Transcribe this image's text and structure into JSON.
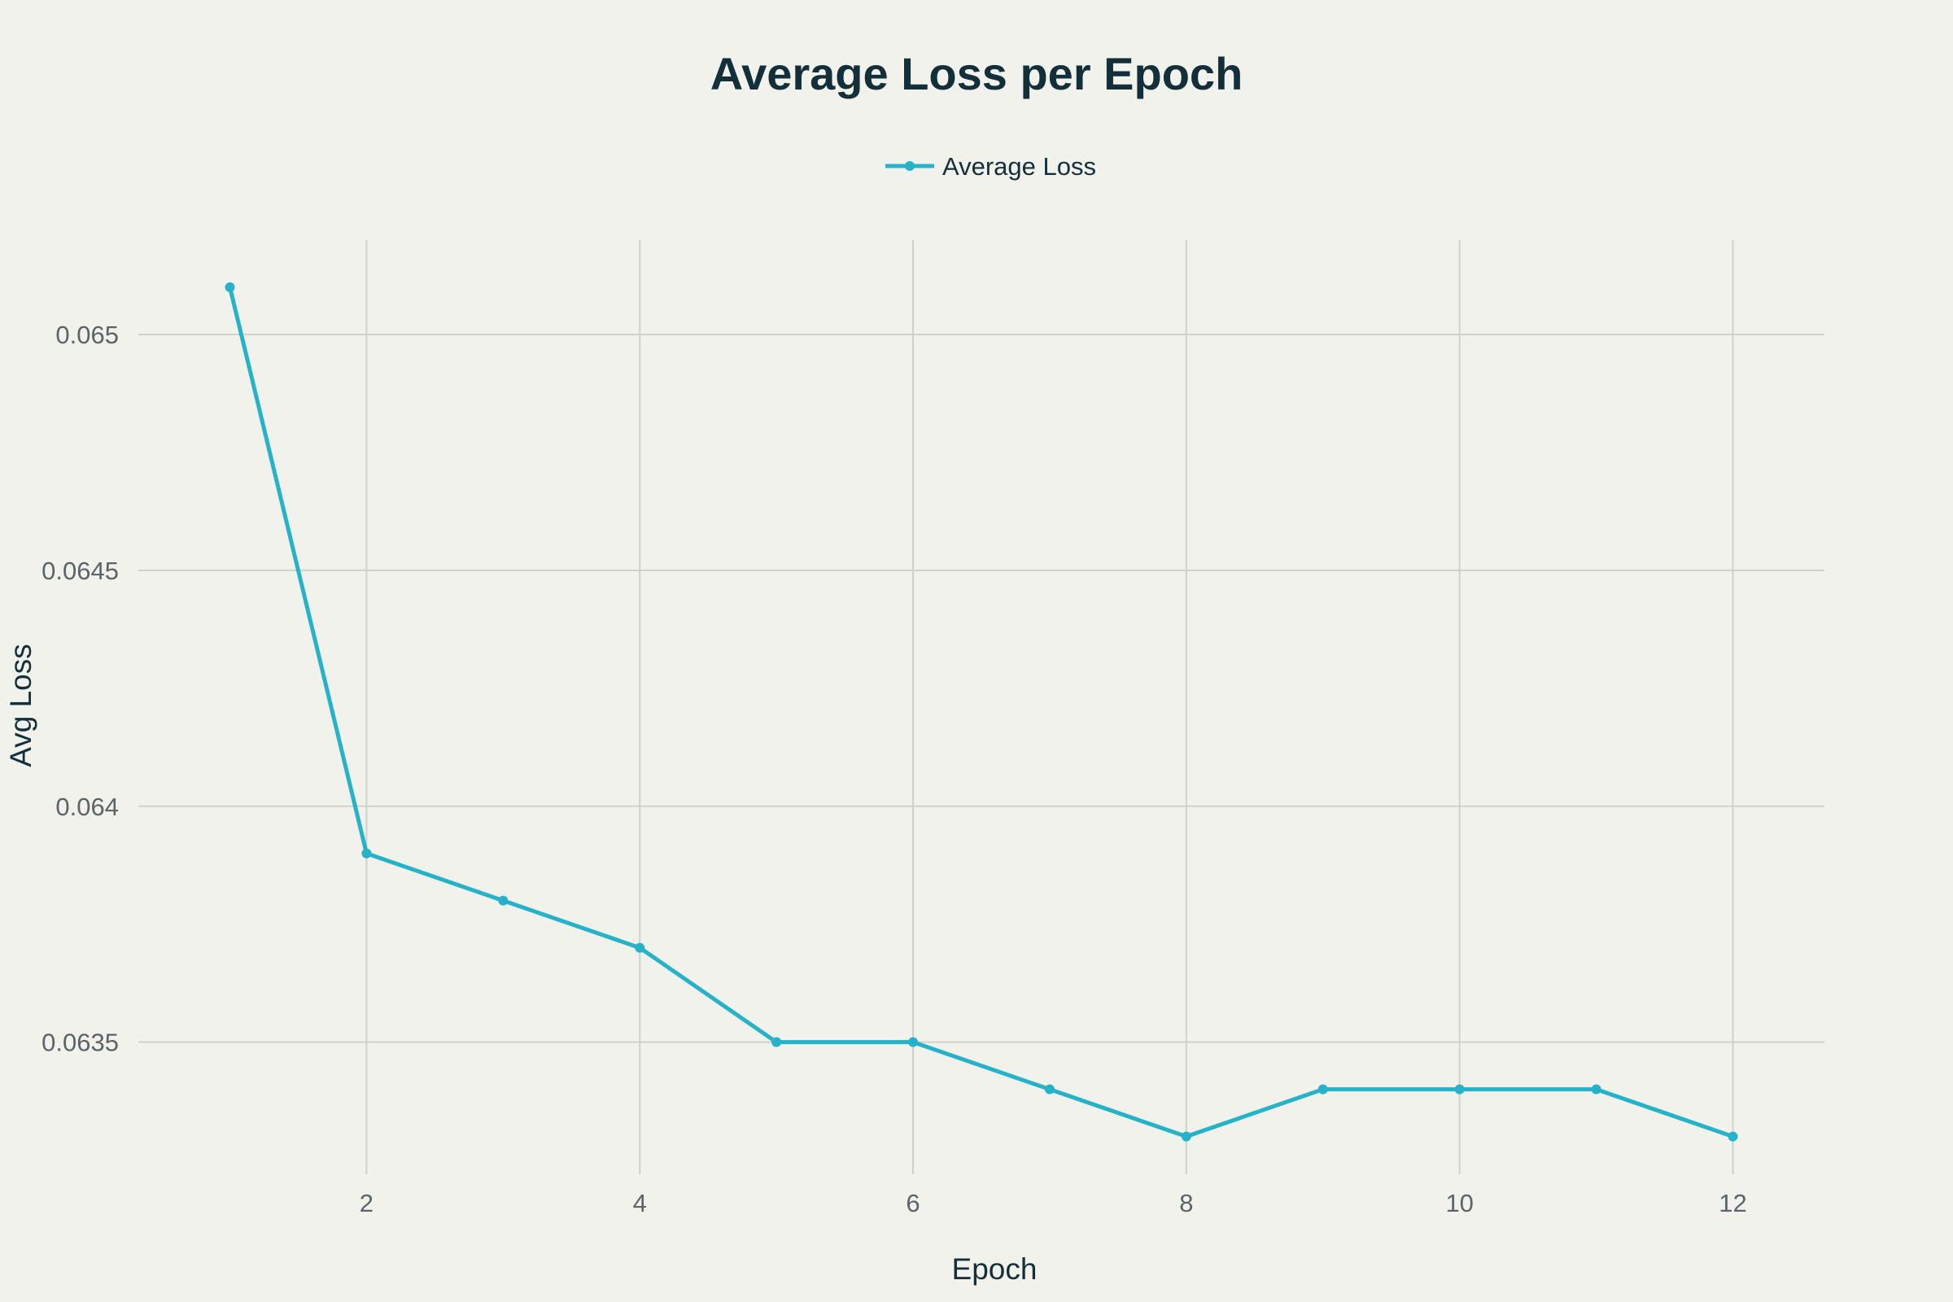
{
  "chart_data": {
    "type": "line",
    "title": "Average Loss per Epoch",
    "xlabel": "Epoch",
    "ylabel": "Avg Loss",
    "x": [
      1,
      2,
      3,
      4,
      5,
      6,
      7,
      8,
      9,
      10,
      11,
      12
    ],
    "series": [
      {
        "name": "Average Loss",
        "color": "#26b2c8",
        "values": [
          0.0651,
          0.0639,
          0.0638,
          0.0637,
          0.0635,
          0.0635,
          0.0634,
          0.0633,
          0.0634,
          0.0634,
          0.0634,
          0.0633
        ]
      }
    ],
    "xlim": [
      0.33,
      12.67
    ],
    "ylim": [
      0.06322,
      0.0652
    ],
    "xticks": [
      2,
      4,
      6,
      8,
      10,
      12
    ],
    "xtick_labels": [
      "2",
      "4",
      "6",
      "8",
      "10",
      "12"
    ],
    "yticks": [
      0.0635,
      0.064,
      0.0645,
      0.065
    ],
    "ytick_labels": [
      "0.0635",
      "0.064",
      "0.0645",
      "0.065"
    ],
    "grid": true,
    "legend_position": "top-center",
    "background_color": "#f2f2ed",
    "grid_color": "#cfd1cd"
  }
}
